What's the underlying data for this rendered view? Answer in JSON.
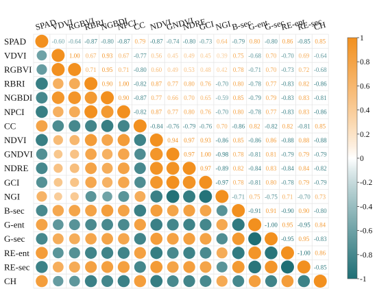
{
  "chart_data": {
    "type": "heatmap",
    "subtype": "correlation-matrix",
    "title": "",
    "variables": [
      "SPAD",
      "VDVI",
      "RGBVI",
      "RBRI",
      "NGBDI",
      "NPCI",
      "CC",
      "NDVI",
      "GNDVI",
      "NDRE",
      "GCI",
      "NGI",
      "B-sec",
      "G-ent",
      "G-sec",
      "RE-ent",
      "RE-sec",
      "CH"
    ],
    "upper_triangle": [
      [
        -0.6,
        -0.64,
        -0.87,
        -0.8,
        -0.87,
        0.79,
        -0.87,
        -0.74,
        -0.8,
        -0.73,
        0.64,
        -0.79,
        0.8,
        -0.8,
        0.86,
        -0.85,
        0.85
      ],
      [
        1.0,
        0.67,
        0.93,
        0.67,
        -0.77,
        0.56,
        0.45,
        0.49,
        0.45,
        0.39,
        0.75,
        -0.68,
        0.7,
        -0.7,
        0.69,
        -0.64
      ],
      [
        0.71,
        0.95,
        0.71,
        -0.8,
        0.6,
        0.49,
        0.53,
        0.48,
        0.42,
        0.78,
        -0.71,
        0.7,
        -0.73,
        0.72,
        -0.68
      ],
      [
        0.9,
        1.0,
        -0.82,
        0.87,
        0.77,
        0.8,
        0.76,
        -0.7,
        0.8,
        -0.78,
        0.77,
        -0.83,
        0.82,
        -0.86
      ],
      [
        0.9,
        -0.87,
        0.77,
        0.66,
        0.7,
        0.65,
        -0.59,
        0.85,
        -0.79,
        0.79,
        -0.83,
        0.83,
        -0.81
      ],
      [
        -0.82,
        0.87,
        0.77,
        0.8,
        0.76,
        -0.7,
        0.8,
        -0.78,
        0.77,
        -0.83,
        0.83,
        -0.86
      ],
      [
        -0.84,
        -0.76,
        -0.79,
        -0.76,
        0.7,
        -0.86,
        0.82,
        -0.82,
        0.82,
        -0.81,
        0.85
      ],
      [
        0.94,
        0.97,
        0.93,
        -0.86,
        0.85,
        -0.86,
        0.86,
        -0.88,
        0.88,
        -0.88
      ],
      [
        0.97,
        1.0,
        -0.98,
        0.78,
        -0.81,
        0.81,
        -0.79,
        0.79,
        -0.79
      ],
      [
        0.97,
        -0.89,
        0.82,
        -0.84,
        0.83,
        -0.84,
        0.84,
        -0.82
      ],
      [
        -0.97,
        0.78,
        -0.81,
        0.8,
        -0.78,
        0.79,
        -0.79
      ],
      [
        -0.71,
        0.75,
        -0.75,
        0.71,
        -0.7,
        0.73
      ],
      [
        -0.91,
        0.91,
        -0.9,
        0.9,
        -0.8
      ],
      [
        -1.0,
        0.95,
        -0.95,
        0.84
      ],
      [
        -0.95,
        0.95,
        -0.83
      ],
      [
        -1.0,
        0.86
      ],
      [
        -0.85
      ]
    ],
    "colorbar": {
      "range": [
        -1,
        1
      ],
      "ticks": [
        "1",
        "0.8",
        "0.6",
        "0.4",
        "0.2",
        "0",
        "-0.2",
        "-0.4",
        "-0.6",
        "-0.8",
        "-1"
      ],
      "colors": {
        "negative": "#1f6f75",
        "zero": "#ffffff",
        "positive": "#f2901f"
      },
      "position": "right"
    },
    "lower_triangle_marks": "circles sized by |r|, colored by r",
    "upper_triangle_marks": "numeric labels colored by r"
  }
}
